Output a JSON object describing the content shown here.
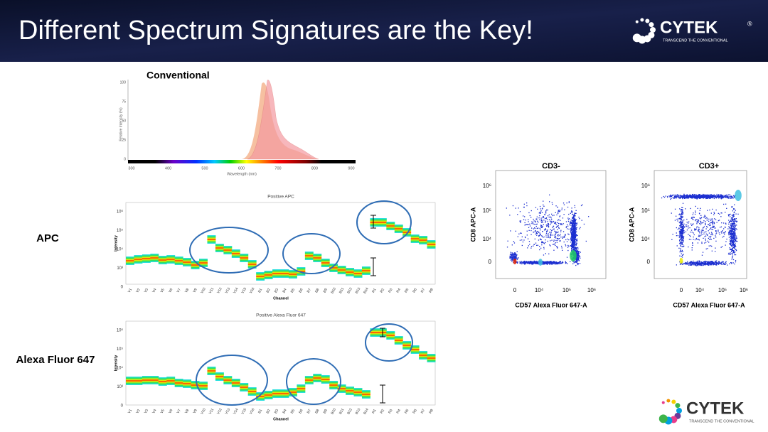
{
  "header": {
    "title": "Different Spectrum Signatures are the Key!"
  },
  "logo": {
    "name": "CYTEK",
    "mark": "®",
    "tagline": "TRANSCEND THE CONVENTIONAL"
  },
  "conventional": {
    "title": "Conventional",
    "x_label": "Wavelength (nm)",
    "y_label": "Relative Intensity (%)",
    "x_ticks": [
      "300",
      "400",
      "500",
      "600",
      "700",
      "800",
      "900"
    ],
    "y_ticks": [
      "100",
      "75",
      "50",
      "25",
      "0"
    ]
  },
  "spectra": [
    {
      "row_label": "APC",
      "title": "Positive APC"
    },
    {
      "row_label": "Alexa Fluor 647",
      "title": "Positive Alexa Fluor 647"
    }
  ],
  "spectrum_axes": {
    "x_label": "Channel",
    "y_label": "Intensity",
    "y_ticks": [
      "10⁶",
      "10⁵",
      "10⁴",
      "10³",
      "0"
    ],
    "channels": [
      "V1",
      "V2",
      "V3",
      "V4",
      "V5",
      "V6",
      "V7",
      "V8",
      "V9",
      "V10",
      "V11",
      "V12",
      "V13",
      "V14",
      "V15",
      "V16",
      "B1",
      "B2",
      "B3",
      "B4",
      "B5",
      "B6",
      "B7",
      "B8",
      "B9",
      "B10",
      "B11",
      "B12",
      "B13",
      "B14",
      "R1",
      "R2",
      "R3",
      "R4",
      "R5",
      "R6",
      "R7",
      "R8"
    ]
  },
  "flow": {
    "y_label": "CD8 APC-A",
    "x_label": "CD57 Alexa Fluor 647-A",
    "y_ticks": [
      "10⁶",
      "10⁵",
      "10⁴",
      "0"
    ],
    "x_ticks": [
      "0",
      "10⁴",
      "10⁵",
      "10⁶"
    ],
    "plots": [
      {
        "title": "CD3-"
      },
      {
        "title": "CD3+"
      }
    ]
  }
}
